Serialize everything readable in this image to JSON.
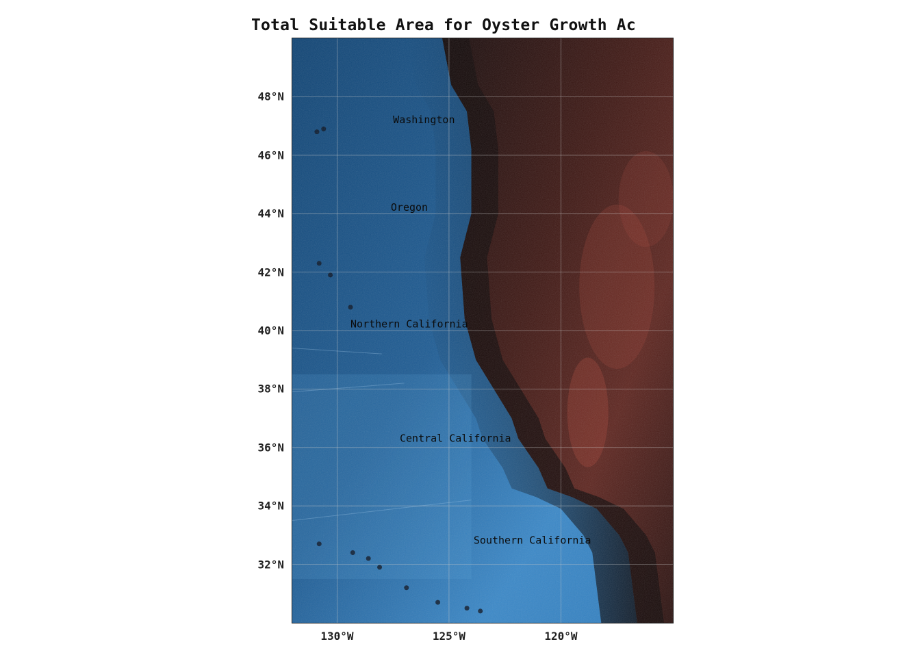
{
  "title": "Total Suitable Area for Oyster Growth Ac",
  "map": {
    "lat_range": [
      30,
      50
    ],
    "lon_range": [
      -132,
      -115
    ],
    "projection": "plate-carree",
    "ocean_color": "#2a6aa8",
    "land_color": "#7a2a22",
    "coast_color": "#140c0c",
    "grid": true,
    "lat_ticks": [
      {
        "value": 48,
        "label": "48°N"
      },
      {
        "value": 46,
        "label": "46°N"
      },
      {
        "value": 44,
        "label": "44°N"
      },
      {
        "value": 42,
        "label": "42°N"
      },
      {
        "value": 40,
        "label": "40°N"
      },
      {
        "value": 38,
        "label": "38°N"
      },
      {
        "value": 36,
        "label": "36°N"
      },
      {
        "value": 34,
        "label": "34°N"
      },
      {
        "value": 32,
        "label": "32°N"
      }
    ],
    "lon_ticks": [
      {
        "value": -130,
        "label": "130°W"
      },
      {
        "value": -125,
        "label": "125°W"
      },
      {
        "value": -120,
        "label": "120°W"
      }
    ],
    "regions": [
      {
        "name": "Washington",
        "lon": -127.5,
        "lat": 47.1
      },
      {
        "name": "Oregon",
        "lon": -127.6,
        "lat": 44.1
      },
      {
        "name": "Northern California",
        "lon": -129.4,
        "lat": 40.1
      },
      {
        "name": "Central California",
        "lon": -127.2,
        "lat": 36.2
      },
      {
        "name": "Southern California",
        "lon": -123.9,
        "lat": 32.7
      }
    ]
  }
}
